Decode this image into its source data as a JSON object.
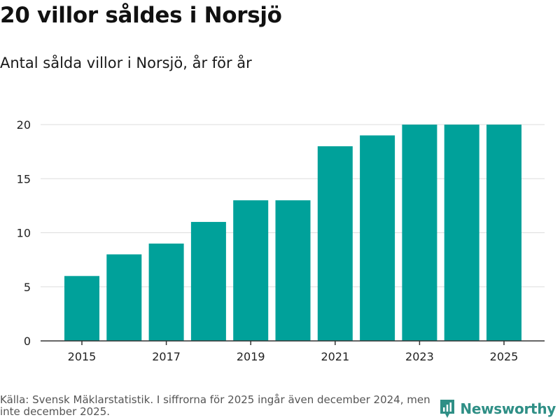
{
  "header": {
    "title": "20 villor såldes i Norsjö",
    "subtitle": "Antal sålda villor i Norsjö, år för år"
  },
  "footer": {
    "source": "Källa: Svensk Mäklarstatistik. I siffrorna för 2025 ingår även december 2024, men inte december 2025.",
    "brand": "Newsworthy"
  },
  "colors": {
    "bar": "#00A19A",
    "grid": "#dddddd",
    "axis": "#333333",
    "brand": "#2f8f86"
  },
  "chart_data": {
    "type": "bar",
    "title": "20 villor såldes i Norsjö",
    "subtitle": "Antal sålda villor i Norsjö, år för år",
    "xlabel": "",
    "ylabel": "",
    "categories": [
      "2015",
      "2016",
      "2017",
      "2018",
      "2019",
      "2020",
      "2021",
      "2022",
      "2023",
      "2024",
      "2025"
    ],
    "values": [
      6,
      8,
      9,
      11,
      13,
      13,
      18,
      19,
      20,
      20,
      20
    ],
    "x_tick_labels": [
      "2015",
      "2017",
      "2019",
      "2021",
      "2023",
      "2025"
    ],
    "y_ticks": [
      0,
      5,
      10,
      15,
      20
    ],
    "ylim": [
      0,
      20
    ],
    "grid": true
  }
}
